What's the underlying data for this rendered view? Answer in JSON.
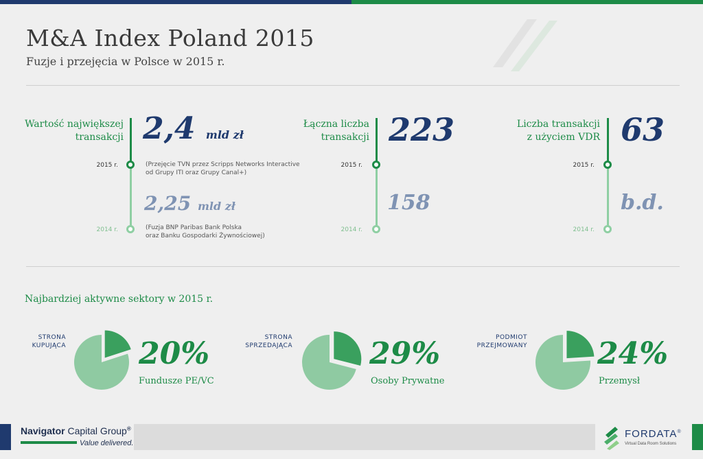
{
  "header": {
    "title": "M&A Index Poland 2015",
    "subtitle": "Fuzje i przejęcia w Polsce w 2015 r."
  },
  "colors": {
    "navy": "#1f3a6e",
    "green": "#1d8b47",
    "light_green": "#8fcfa3",
    "muted_blue": "#7f93b3"
  },
  "stats": [
    {
      "label_line1": "Wartość największej",
      "label_line2": "transakcji",
      "year_current": "2015 r.",
      "value_current": "2,4",
      "unit_current": "mld zł",
      "note_current_line1": "(Przejęcie TVN przez Scripps Networks Interactive",
      "note_current_line2": "od Grupy ITI oraz Grupy Canal+)",
      "year_prev": "2014 r.",
      "value_prev": "2,25",
      "unit_prev": "mld zł",
      "note_prev_line1": "(Fuzja BNP Paribas Bank Polska",
      "note_prev_line2": "oraz Banku Gospodarki Żywnościowej)"
    },
    {
      "label_line1": "Łączna liczba",
      "label_line2": "transakcji",
      "year_current": "2015 r.",
      "value_current": "223",
      "year_prev": "2014 r.",
      "value_prev": "158"
    },
    {
      "label_line1": "Liczba transakcji",
      "label_line2": "z użyciem VDR",
      "year_current": "2015 r.",
      "value_current": "63",
      "year_prev": "2014 r.",
      "value_prev": "b.d."
    }
  ],
  "sectors": {
    "title": "Najbardziej aktywne sektory w 2015 r.",
    "items": [
      {
        "label_line1": "STRONA",
        "label_line2": "KUPUJĄCA",
        "percent": "20%",
        "share": 0.2,
        "name": "Fundusze PE/VC"
      },
      {
        "label_line1": "STRONA",
        "label_line2": "SPRZEDAJĄCA",
        "percent": "29%",
        "share": 0.29,
        "name": "Osoby Prywatne"
      },
      {
        "label_line1": "PODMIOT",
        "label_line2": "PRZEJMOWANY",
        "percent": "24%",
        "share": 0.24,
        "name": "Przemysł"
      }
    ]
  },
  "footer": {
    "nav_name_bold": "Navigator",
    "nav_name_light": " Capital Group",
    "nav_reg": "®",
    "nav_tagline": "Value delivered.",
    "fordata_name": "FORDATA",
    "fordata_reg": "®",
    "fordata_tagline": "Virtual Data Room Solutions",
    "nav_logo_icon": "navigator-logo",
    "fordata_logo_icon": "fordata-leaf-logo"
  }
}
